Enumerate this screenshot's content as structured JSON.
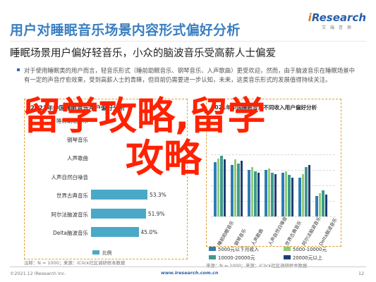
{
  "header": {
    "title": "用户对睡眠音乐场景内容形式偏好分析",
    "subtitle": "睡眠场景用户偏好轻音乐，小众的脑波音乐受高薪人士偏爱",
    "brand_logo": "iResearch",
    "brand_cn": "艾 瑞 咨 询"
  },
  "paragraph": "对于使用睡眠类的用户而言，轻音乐形式（睡前助眠音乐、钢琴音乐、人声歌曲）更受欢迎，然而，由于脑波音乐在睡眠场景中有一定的声音疗愈效果，受到高薪人士的青睐，但目前仍需要进一步认知，未来，这类音乐形式的发展值得持续关注。",
  "overlay_text": {
    "line1": "留学攻略,留学",
    "line2": "攻略"
  },
  "left_chart": {
    "title": "2021年中国睡眠音乐用户偏好分析",
    "note": "注释：N = 1000；来源：iClick社区调研样本数据"
  },
  "right_chart": {
    "title": "2021年中国睡眠音乐不同收入用户偏好分析",
    "note": "来源：N = 1000；来源：iClick社区调研样本数据"
  },
  "chart_data": [
    {
      "type": "bar",
      "orientation": "horizontal",
      "categories": [
        "睡前助眠音乐",
        "钢琴音乐",
        "人声歌曲",
        "人声自然白噪音",
        "世界古典音乐",
        "阿尔法脑波音乐",
        "Delta脑波音乐"
      ],
      "values": [
        null,
        null,
        null,
        null,
        53.3,
        51.9,
        45.0
      ],
      "value_labels": [
        "",
        "",
        "",
        "",
        "53.3%",
        "51.9%",
        "45.0%"
      ],
      "unit": "%",
      "legend": [
        "比例"
      ],
      "colors": [
        "#4aa9c7"
      ]
    },
    {
      "type": "bar",
      "categories": [
        "睡前助眠音乐",
        "钢琴音乐",
        "人声歌曲",
        "人声自然白噪音",
        "世界古典音乐",
        "阿尔法脑波音乐",
        "Delta脑波音乐"
      ],
      "series": [
        {
          "name": "5000元以下月收入",
          "color": "#2e7db5",
          "values": [
            42,
            40,
            36,
            36,
            34,
            30,
            16
          ]
        },
        {
          "name": "5000-10000元",
          "color": "#8fcc7a",
          "values": [
            45,
            44,
            38,
            37,
            35,
            33,
            18
          ]
        },
        {
          "name": "10000-20000元",
          "color": "#3f9a8c",
          "values": [
            47,
            41,
            35,
            34,
            32,
            38,
            20
          ]
        },
        {
          "name": "20000元以上",
          "color": "#1f3f73",
          "values": [
            44,
            43,
            34,
            33,
            30,
            40,
            17
          ]
        }
      ]
    }
  ],
  "footer": {
    "source": "©2021.12 iResearch Inc.",
    "site": "www.iresearch.com.cn",
    "page": "12"
  }
}
